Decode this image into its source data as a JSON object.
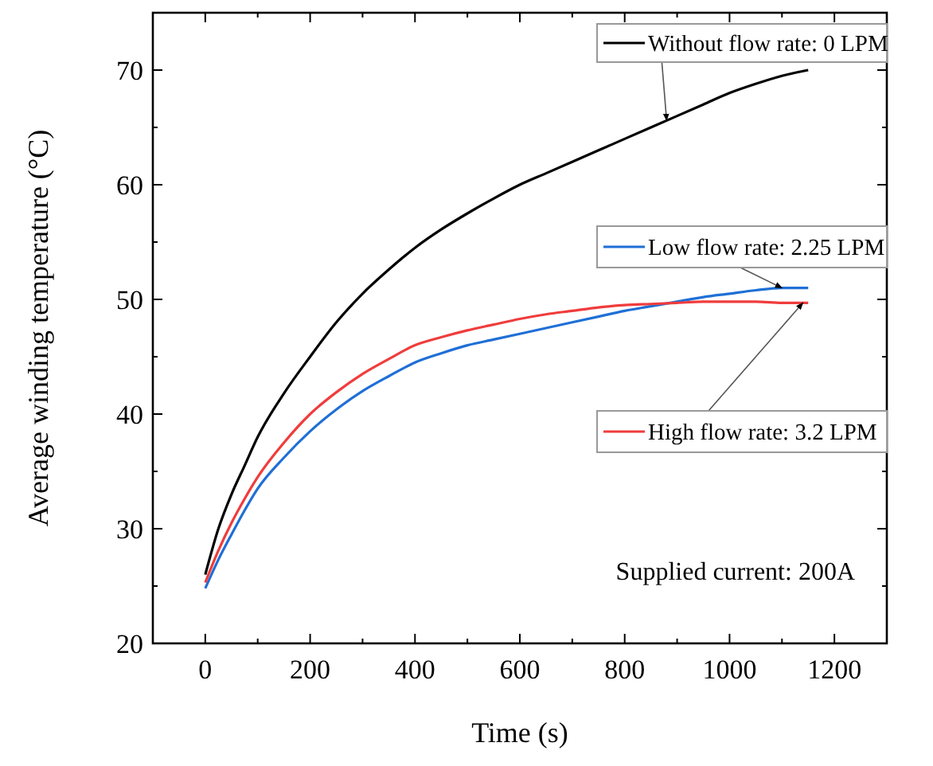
{
  "chart_data": {
    "type": "line",
    "xlabel": "Time (s)",
    "ylabel": "Average winding temperature (°C)",
    "x": [
      0,
      25,
      50,
      75,
      100,
      150,
      200,
      250,
      300,
      350,
      400,
      450,
      500,
      550,
      600,
      650,
      700,
      750,
      800,
      850,
      900,
      950,
      1000,
      1050,
      1100,
      1150
    ],
    "series": [
      {
        "name": "Without flow rate: 0 LPM",
        "color": "#000000",
        "values": [
          26,
          30,
          33,
          35.5,
          38,
          41.8,
          45,
          48,
          50.5,
          52.6,
          54.5,
          56.1,
          57.5,
          58.8,
          60,
          61,
          62,
          63,
          64,
          65,
          66,
          67,
          68,
          68.8,
          69.5,
          70
        ]
      },
      {
        "name": "Low flow rate: 2.25 LPM",
        "color": "#1f6fd6",
        "values": [
          24.8,
          27.3,
          29.5,
          31.6,
          33.5,
          36.2,
          38.5,
          40.4,
          42,
          43.3,
          44.5,
          45.3,
          46,
          46.5,
          47,
          47.5,
          48,
          48.5,
          49,
          49.4,
          49.8,
          50.2,
          50.5,
          50.8,
          51,
          51
        ]
      },
      {
        "name": "High flow rate: 3.2 LPM",
        "color": "#f03c3c",
        "values": [
          25.3,
          28.1,
          30.5,
          32.6,
          34.5,
          37.5,
          40,
          41.9,
          43.5,
          44.8,
          46,
          46.7,
          47.3,
          47.8,
          48.3,
          48.7,
          49,
          49.3,
          49.5,
          49.6,
          49.7,
          49.8,
          49.8,
          49.8,
          49.7,
          49.7
        ]
      }
    ],
    "xlim": [
      -100,
      1300
    ],
    "ylim": [
      20,
      75
    ],
    "xticks": [
      0,
      200,
      400,
      600,
      800,
      1000,
      1200
    ],
    "yticks": [
      20,
      30,
      40,
      50,
      60,
      70
    ],
    "grid": false,
    "legend": "right",
    "marker": "none",
    "line_style": "solid",
    "annotations": [
      "Supplied current: 200A"
    ]
  }
}
